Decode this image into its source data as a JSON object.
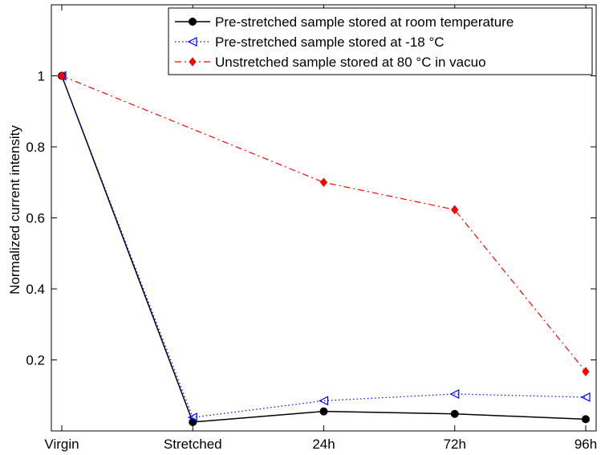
{
  "chart_data": {
    "type": "line",
    "title": "",
    "xlabel": "",
    "ylabel": "Normalized current intensity",
    "categories": [
      "Virgin",
      "Stretched",
      "24h",
      "72h",
      "96h"
    ],
    "ylim": [
      0,
      1.2
    ],
    "yticks": [
      0.2,
      0.4,
      0.6,
      0.8,
      1
    ],
    "ytick_labels": [
      "0.2",
      "0.4",
      "0.6",
      "0.8",
      "1"
    ],
    "grid": false,
    "legend_position": "top-right",
    "series": [
      {
        "name": "Pre-stretched sample stored at room temperature",
        "values": [
          1.0,
          0.025,
          0.055,
          0.048,
          0.033
        ],
        "color": "#000000",
        "line_style": "solid",
        "marker": "filled-circle"
      },
      {
        "name": "Pre-stretched sample stored at -18 °C",
        "values": [
          1.0,
          0.038,
          0.085,
          0.104,
          0.095
        ],
        "color": "#0000ff",
        "line_style": "dotted",
        "marker": "left-triangle-open"
      },
      {
        "name": "Unstretched sample stored at 80 °C in vacuo",
        "values": [
          1.0,
          null,
          0.7,
          0.623,
          0.167
        ],
        "color": "#ff0000",
        "line_style": "dash-dot",
        "marker": "filled-diamond"
      }
    ]
  }
}
